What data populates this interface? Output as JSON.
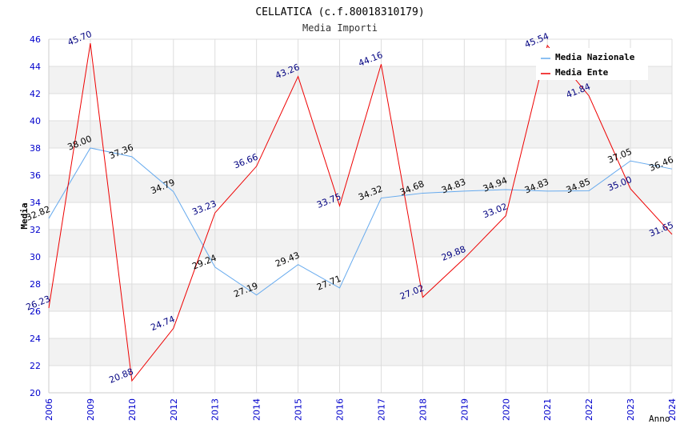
{
  "chart_data": {
    "type": "line",
    "title": "CELLATICA (c.f.80018310179)",
    "subtitle": "Media Importi",
    "xlabel": "Anno",
    "ylabel": "Media",
    "categories": [
      "2006",
      "2009",
      "2010",
      "2012",
      "2013",
      "2014",
      "2015",
      "2016",
      "2017",
      "2018",
      "2019",
      "2020",
      "2021",
      "2022",
      "2023",
      "2024"
    ],
    "ylim": [
      20,
      46
    ],
    "yticks": [
      20,
      22,
      24,
      26,
      28,
      30,
      32,
      34,
      36,
      38,
      40,
      42,
      44,
      46
    ],
    "grid": true,
    "legend_position": "top-right",
    "series": [
      {
        "name": "Media Nazionale",
        "color": "#66aaee",
        "label_color": "#000000",
        "values": [
          32.82,
          38.0,
          37.36,
          34.79,
          29.24,
          27.19,
          29.43,
          27.71,
          34.32,
          34.68,
          34.83,
          34.94,
          34.83,
          34.85,
          37.05,
          36.46
        ]
      },
      {
        "name": "Media Ente",
        "color": "#ee0000",
        "label_color": "#000080",
        "values": [
          26.23,
          45.7,
          20.88,
          24.74,
          33.23,
          36.66,
          43.26,
          33.75,
          44.16,
          27.02,
          29.88,
          33.02,
          45.54,
          41.84,
          35.0,
          31.65
        ]
      }
    ],
    "colors": {
      "axis_text": "#0000cc",
      "band": "#f2f2f2",
      "grid": "#dddddd",
      "title": "#000000",
      "subtitle": "#333333"
    }
  }
}
